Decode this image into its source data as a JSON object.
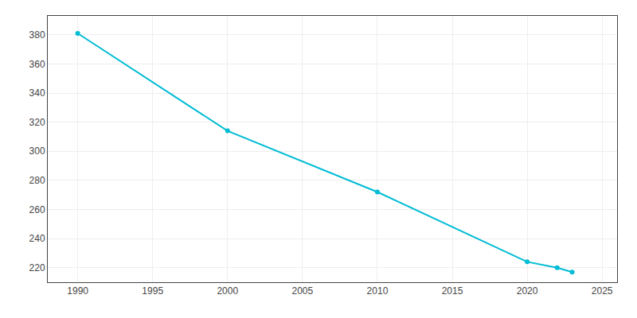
{
  "chart_data": {
    "type": "line",
    "x": [
      1990,
      2000,
      2010,
      2020,
      2022,
      2023
    ],
    "values": [
      381,
      314,
      272,
      224,
      220,
      217
    ],
    "color": "#00BCD4",
    "marker": "circle",
    "xlim": [
      1988,
      2026
    ],
    "ylim": [
      210,
      393
    ],
    "xticks": [
      1990,
      1995,
      2000,
      2005,
      2010,
      2015,
      2020,
      2025
    ],
    "yticks": [
      220,
      240,
      260,
      280,
      300,
      320,
      340,
      360,
      380
    ],
    "grid": true
  }
}
